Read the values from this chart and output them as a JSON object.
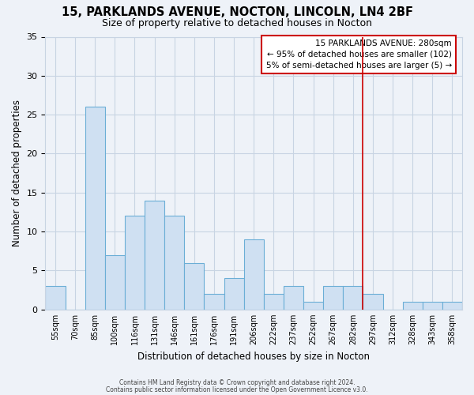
{
  "title": "15, PARKLANDS AVENUE, NOCTON, LINCOLN, LN4 2BF",
  "subtitle": "Size of property relative to detached houses in Nocton",
  "xlabel": "Distribution of detached houses by size in Nocton",
  "ylabel": "Number of detached properties",
  "bar_labels": [
    "55sqm",
    "70sqm",
    "85sqm",
    "100sqm",
    "116sqm",
    "131sqm",
    "146sqm",
    "161sqm",
    "176sqm",
    "191sqm",
    "206sqm",
    "222sqm",
    "237sqm",
    "252sqm",
    "267sqm",
    "282sqm",
    "297sqm",
    "312sqm",
    "328sqm",
    "343sqm",
    "358sqm"
  ],
  "bar_values": [
    3,
    0,
    26,
    7,
    12,
    14,
    12,
    6,
    2,
    4,
    9,
    2,
    3,
    1,
    3,
    3,
    2,
    0,
    1,
    1,
    1
  ],
  "bar_color": "#cfe0f2",
  "bar_edge_color": "#6baed6",
  "grid_color": "#c8d4e3",
  "background_color": "#eef2f8",
  "vline_x_index": 15,
  "vline_color": "#cc0000",
  "annotation_line1": "15 PARKLANDS AVENUE: 280sqm",
  "annotation_line2": "← 95% of detached houses are smaller (102)",
  "annotation_line3": "5% of semi-detached houses are larger (5) →",
  "annotation_box_color": "#ffffff",
  "annotation_box_edge": "#cc0000",
  "ylim": [
    0,
    35
  ],
  "yticks": [
    0,
    5,
    10,
    15,
    20,
    25,
    30,
    35
  ],
  "footer1": "Contains HM Land Registry data © Crown copyright and database right 2024.",
  "footer2": "Contains public sector information licensed under the Open Government Licence v3.0."
}
